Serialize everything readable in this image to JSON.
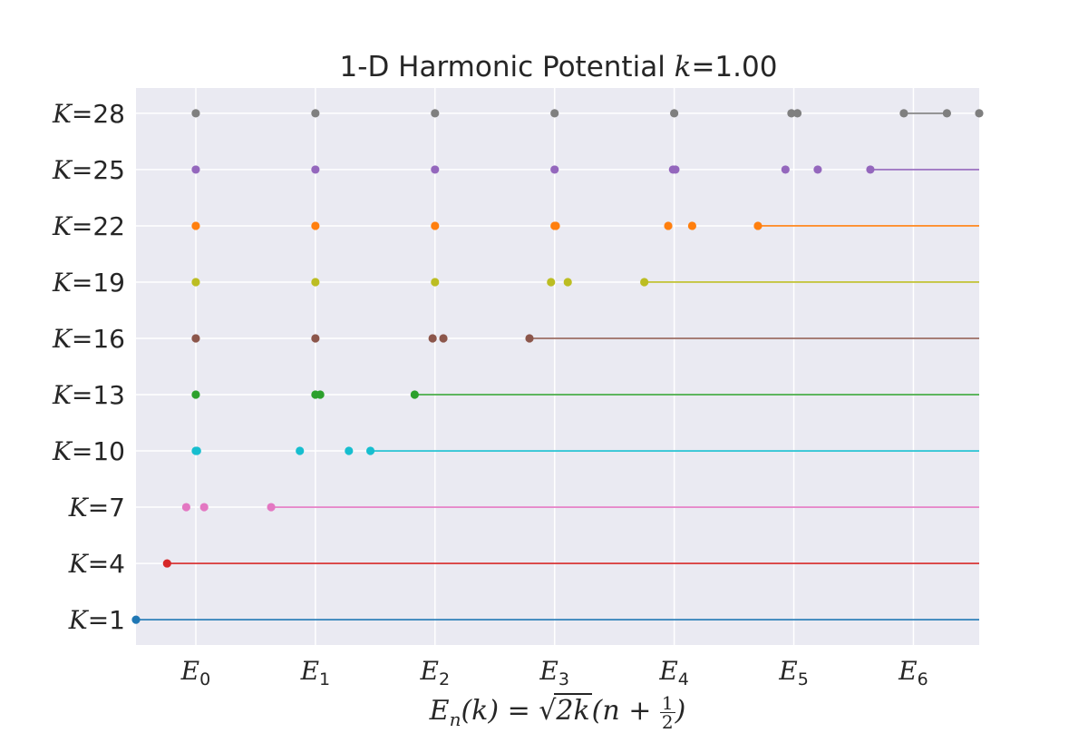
{
  "chart_data": {
    "type": "scatter",
    "title_prefix": "1-D Harmonic Potential ",
    "title_var": "k",
    "title_suffix": "=1.00",
    "xlabel_parts": {
      "lhs": "E",
      "sub": "n",
      "arg": "(k) = ",
      "sqrt": "2k",
      "open": "(n + ",
      "num": "1",
      "den": "2",
      "close": ")"
    },
    "xticks": [
      {
        "base": "E",
        "sub": "0",
        "x": 0
      },
      {
        "base": "E",
        "sub": "1",
        "x": 1
      },
      {
        "base": "E",
        "sub": "2",
        "x": 2
      },
      {
        "base": "E",
        "sub": "3",
        "x": 3
      },
      {
        "base": "E",
        "sub": "4",
        "x": 4
      },
      {
        "base": "E",
        "sub": "5",
        "x": 5
      },
      {
        "base": "E",
        "sub": "6",
        "x": 6
      }
    ],
    "xlim": [
      -0.5,
      6.55
    ],
    "ylim": [
      0.55,
      10.45
    ],
    "grid": true,
    "series": [
      {
        "label": "K=1",
        "color": "#1f77b4",
        "points": [
          -0.5
        ],
        "line_from": -0.5
      },
      {
        "label": "K=4",
        "color": "#d62728",
        "points": [
          -0.24
        ],
        "line_from": -0.24
      },
      {
        "label": "K=7",
        "color": "#e377c2",
        "points": [
          -0.08,
          0.07,
          0.63
        ],
        "line_from": 0.63
      },
      {
        "label": "K=10",
        "color": "#17becf",
        "points": [
          0.0,
          0.01,
          0.87,
          1.28,
          1.46
        ],
        "line_from": 1.46
      },
      {
        "label": "K=13",
        "color": "#2ca02c",
        "points": [
          0.0,
          1.0,
          1.04,
          1.83
        ],
        "line_from": 1.83
      },
      {
        "label": "K=16",
        "color": "#8c564b",
        "points": [
          0.0,
          1.0,
          1.98,
          2.07,
          2.79
        ],
        "line_from": 2.79
      },
      {
        "label": "K=19",
        "color": "#bcbd22",
        "points": [
          0.0,
          1.0,
          2.0,
          2.97,
          3.11,
          3.75
        ],
        "line_from": 3.75
      },
      {
        "label": "K=22",
        "color": "#ff7f0e",
        "points": [
          0.0,
          1.0,
          2.0,
          3.0,
          3.01,
          3.95,
          4.15,
          4.7
        ],
        "line_from": 4.7
      },
      {
        "label": "K=25",
        "color": "#9467bd",
        "points": [
          0.0,
          1.0,
          2.0,
          3.0,
          3.99,
          4.01,
          4.93,
          5.2,
          5.64
        ],
        "line_from": 5.64
      },
      {
        "label": "K=28",
        "color": "#7f7f7f",
        "points": [
          0.0,
          1.0,
          2.0,
          3.0,
          4.0,
          4.98,
          5.03,
          5.92,
          6.28,
          6.55
        ],
        "line_from": 5.92,
        "line_to": 6.28
      }
    ],
    "colors": {
      "plot_bg": "#eaeaf2",
      "grid": "#ffffff",
      "text": "#262626"
    }
  }
}
